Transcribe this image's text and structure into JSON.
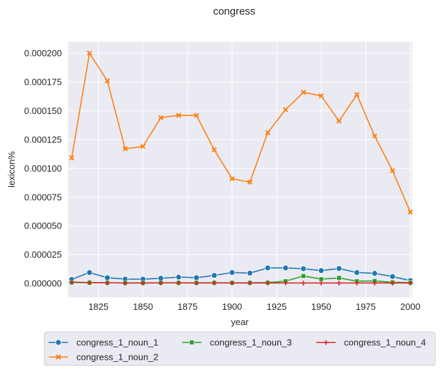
{
  "chart_data": {
    "type": "line",
    "title": "congress",
    "xlabel": "year",
    "ylabel": "lexicon%",
    "xlim": [
      1808,
      2001
    ],
    "ylim": [
      -1.2e-05,
      0.00021
    ],
    "grid": true,
    "legend_placement": "bottom, outside plot, 3 columns",
    "x_ticks": [
      1825,
      1850,
      1875,
      1900,
      1925,
      1950,
      1975,
      2000
    ],
    "y_ticks": [
      0,
      2.5e-05,
      5e-05,
      7.5e-05,
      0.0001,
      0.000125,
      0.00015,
      0.000175,
      0.0002
    ],
    "x_tick_labels": [
      "1825",
      "1850",
      "1875",
      "1900",
      "1925",
      "1950",
      "1975",
      "2000"
    ],
    "y_tick_labels": [
      "0.000000",
      "0.000025",
      "0.000050",
      "0.000075",
      "0.000100",
      "0.000125",
      "0.000150",
      "0.000175",
      "0.000200"
    ],
    "x": [
      1810,
      1820,
      1830,
      1840,
      1850,
      1860,
      1870,
      1880,
      1890,
      1900,
      1910,
      1920,
      1930,
      1940,
      1950,
      1960,
      1970,
      1980,
      1990,
      2000
    ],
    "series": [
      {
        "name": "congress_1_noun_1",
        "color": "#1f77b4",
        "marker": "circle",
        "values": [
          3.5e-06,
          9.5e-06,
          5e-06,
          3.8e-06,
          3.7e-06,
          4.5e-06,
          5.5e-06,
          5e-06,
          7e-06,
          9.5e-06,
          9e-06,
          1.35e-05,
          1.35e-05,
          1.28e-05,
          1.12e-05,
          1.3e-05,
          9.5e-06,
          8.8e-06,
          6e-06,
          2.5e-06
        ]
      },
      {
        "name": "congress_1_noun_2",
        "color": "#ff7f0e",
        "marker": "x",
        "values": [
          0.000109,
          0.0002,
          0.000176,
          0.000117,
          0.000119,
          0.000144,
          0.000146,
          0.000146,
          0.000116,
          9.1e-05,
          8.8e-05,
          0.000131,
          0.000151,
          0.000166,
          0.000163,
          0.000141,
          0.000164,
          0.000128,
          9.8e-05,
          6.2e-05
        ]
      },
      {
        "name": "congress_1_noun_3",
        "color": "#2ca02c",
        "marker": "square",
        "values": [
          8e-07,
          6e-07,
          6e-07,
          5e-07,
          5e-07,
          6e-07,
          6e-07,
          6e-07,
          6e-07,
          6e-07,
          6e-07,
          8e-07,
          2e-06,
          6.5e-06,
          3.8e-06,
          4.8e-06,
          2e-06,
          2.2e-06,
          1e-06,
          8e-07
        ]
      },
      {
        "name": "congress_1_noun_4",
        "color": "#d62728",
        "marker": "plus",
        "values": [
          1.2e-06,
          8e-07,
          6e-07,
          4e-07,
          4e-07,
          5e-07,
          5e-07,
          4e-07,
          5e-07,
          4e-07,
          4e-07,
          4e-07,
          4e-07,
          4e-07,
          4e-07,
          4e-07,
          4e-07,
          4e-07,
          4e-07,
          4e-07
        ]
      }
    ]
  }
}
